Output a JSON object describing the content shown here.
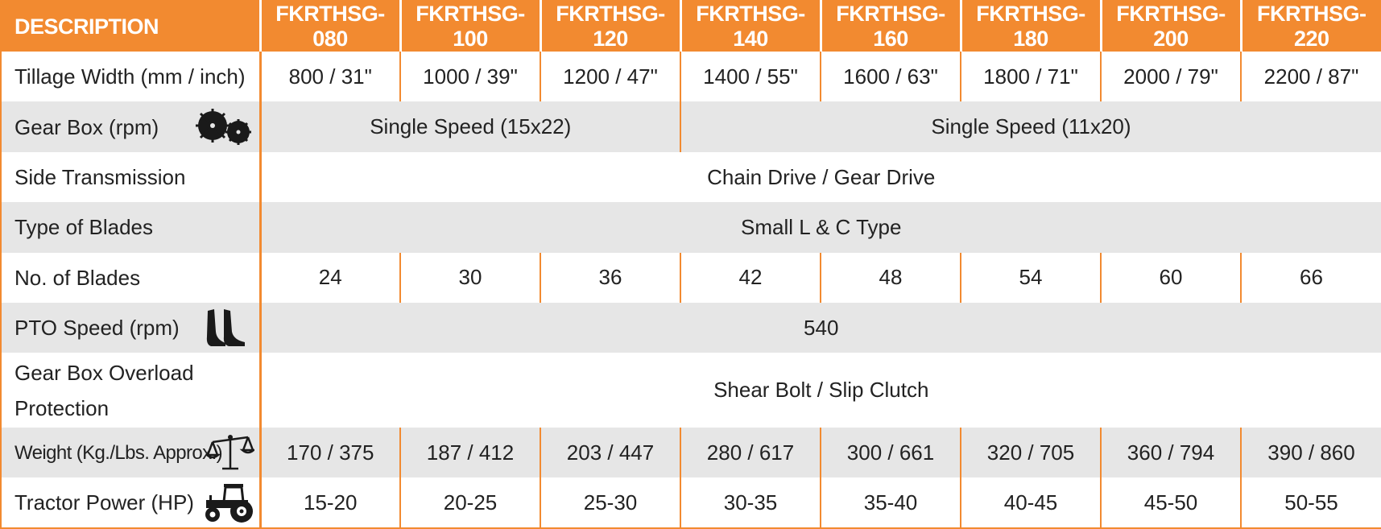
{
  "header": {
    "description": "DESCRIPTION",
    "models": [
      "FKRTHSG-080",
      "FKRTHSG-100",
      "FKRTHSG-120",
      "FKRTHSG-140",
      "FKRTHSG-160",
      "FKRTHSG-180",
      "FKRTHSG-200",
      "FKRTHSG-220"
    ]
  },
  "rows": {
    "tillage_width": {
      "label": "Tillage Width (mm / inch)",
      "values": [
        "800 / 31\"",
        "1000 / 39\"",
        "1200 / 47\"",
        "1400 / 55\"",
        "1600 / 63\"",
        "1800 / 71\"",
        "2000 / 79\"",
        "2200 / 87\""
      ]
    },
    "gear_box": {
      "label": "Gear Box (rpm)",
      "icon": "gears-icon",
      "group_a": "Single Speed (15x22)",
      "group_b": "Single Speed (11x20)"
    },
    "side_transmission": {
      "label": "Side Transmission",
      "value": "Chain Drive / Gear Drive"
    },
    "type_of_blades": {
      "label": "Type of Blades",
      "value": "Small L & C Type"
    },
    "no_of_blades": {
      "label": "No. of Blades",
      "values": [
        "24",
        "30",
        "36",
        "42",
        "48",
        "54",
        "60",
        "66"
      ]
    },
    "pto_speed": {
      "label": "PTO Speed (rpm)",
      "icon": "blades-icon",
      "value": "540"
    },
    "overload_protection": {
      "label_line1": "Gear Box Overload",
      "label_line2": "Protection",
      "value": "Shear Bolt / Slip Clutch"
    },
    "weight": {
      "label": "Weight (Kg./Lbs. Approx.)",
      "icon": "scale-icon",
      "values": [
        "170 / 375",
        "187 / 412",
        "203 / 447",
        "280 / 617",
        "300 / 661",
        "320 / 705",
        "360 / 794",
        "390 / 860"
      ]
    },
    "tractor_power": {
      "label": "Tractor Power (HP)",
      "icon": "tractor-icon",
      "values": [
        "15-20",
        "20-25",
        "25-30",
        "30-35",
        "35-40",
        "40-45",
        "45-50",
        "50-55"
      ]
    }
  },
  "colors": {
    "accent": "#f28a30",
    "shade": "#e6e6e6",
    "text": "#222222"
  }
}
